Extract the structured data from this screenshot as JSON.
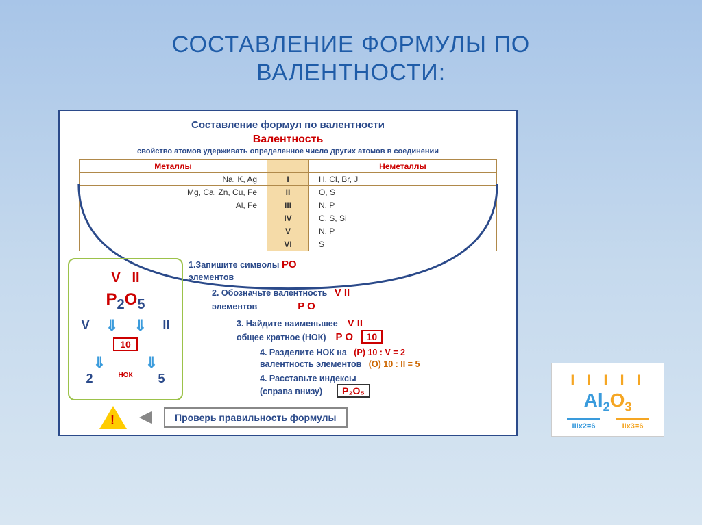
{
  "title_line1": "СОСТАВЛЕНИЕ  ФОРМУЛЫ  ПО",
  "title_line2": "ВАЛЕНТНОСТИ:",
  "colors": {
    "slide_bg_top": "#a8c5e8",
    "slide_bg_bottom": "#d8e6f2",
    "title_color": "#1f5ca8",
    "border_navy": "#2b4a8a",
    "red": "#cc0000",
    "orange": "#cc6600",
    "table_border": "#b0894a",
    "table_roman_bg": "#f5dba8",
    "algo_border": "#9cc24a",
    "warn_fill": "#ffcc00",
    "example_blue": "#3a9bdc",
    "example_orange": "#f5a623"
  },
  "diagram": {
    "header": "Составление формул по валентности",
    "val_title": "Валентность",
    "val_def": "свойство атомов удерживать определенное число других атомов в соединении",
    "col_metals": "Металлы",
    "col_nonmetals": "Неметаллы",
    "rows": [
      {
        "metals": "Na, K, Ag",
        "roman": "I",
        "nonmetals": "H, Cl, Br, J"
      },
      {
        "metals": "Mg, Ca, Zn, Cu, Fe",
        "roman": "II",
        "nonmetals": "O, S"
      },
      {
        "metals": "Al, Fe",
        "roman": "III",
        "nonmetals": "N, P"
      },
      {
        "metals": "",
        "roman": "IV",
        "nonmetals": "C, S, Si"
      },
      {
        "metals": "",
        "roman": "V",
        "nonmetals": "N, P"
      },
      {
        "metals": "",
        "roman": "VI",
        "nonmetals": "S"
      }
    ]
  },
  "algo": {
    "top_v": "V",
    "top_ii": "II",
    "p": "P",
    "sub_p": "2",
    "o": "O",
    "sub_o": "5",
    "left_v": "V",
    "right_ii": "II",
    "nok": "10",
    "bottom_left": "2",
    "bottom_right": "5",
    "nok_label": "НОК"
  },
  "steps": {
    "s1": "1.Запишите символы",
    "s1_sym": "PO",
    "s1_word": "элементов",
    "s2": "2. Обозначьте валентность",
    "s2_word": "элементов",
    "s2_vals": "V II",
    "s2_sym": "P O",
    "s3": "3. Найдите наименьшее",
    "s3b": "общее  кратное (НОК)",
    "s3_vals": "V II",
    "s3_sym": "P O",
    "s3_ten": "10",
    "s4": "4. Разделите НОК на",
    "s4b": "валентность элементов",
    "s4_p": "(P)  10 : V = 2",
    "s4_o": "(O)  10 : II = 5",
    "s5": "4. Расставьте индексы",
    "s5b": "(справа внизу)",
    "s5_formula": "P₂O₅"
  },
  "check": {
    "text": "Проверь правильность формулы"
  },
  "example": {
    "roman_al": "III",
    "roman_o": "II",
    "al": "Al",
    "sub_al": "2",
    "o": "O",
    "sub_o": "3",
    "calc_left": "IIIx2=6",
    "calc_right": "IIx3=6"
  }
}
